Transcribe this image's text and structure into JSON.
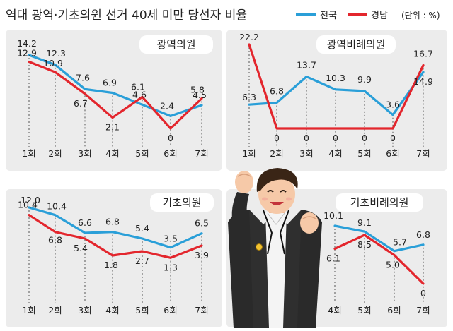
{
  "header": {
    "title": "역대 광역·기초의원 선거 40세 미만 당선자 비율",
    "unit": "(단위 : %)"
  },
  "legend": [
    {
      "label": "전국",
      "color": "#2a9fd8"
    },
    {
      "label": "경남",
      "color": "#e3262d"
    }
  ],
  "chart_data": [
    {
      "type": "line",
      "title": "광역의원",
      "categories": [
        "1회",
        "2회",
        "3회",
        "4회",
        "5회",
        "6회",
        "7회"
      ],
      "series": [
        {
          "name": "전국",
          "values": [
            14.2,
            12.3,
            7.6,
            6.9,
            4.6,
            2.4,
            4.5
          ]
        },
        {
          "name": "경남",
          "values": [
            12.9,
            10.9,
            6.7,
            2.1,
            6.1,
            0,
            5.8
          ]
        }
      ]
    },
    {
      "type": "line",
      "title": "광역비례의원",
      "categories": [
        "1회",
        "2회",
        "3회",
        "4회",
        "5회",
        "6회",
        "7회"
      ],
      "series": [
        {
          "name": "전국",
          "values": [
            6.3,
            6.8,
            13.7,
            10.3,
            9.9,
            3.6,
            14.9
          ]
        },
        {
          "name": "경남",
          "values": [
            22.2,
            0,
            0,
            0,
            0,
            0,
            16.7
          ]
        }
      ]
    },
    {
      "type": "line",
      "title": "기초의원",
      "categories": [
        "1회",
        "2회",
        "3회",
        "4회",
        "5회",
        "6회",
        "7회"
      ],
      "series": [
        {
          "name": "전국",
          "values": [
            12.0,
            10.4,
            6.6,
            6.8,
            5.4,
            3.5,
            6.5
          ]
        },
        {
          "name": "경남",
          "values": [
            10.4,
            6.8,
            5.4,
            1.8,
            2.7,
            1.3,
            3.9
          ]
        }
      ]
    },
    {
      "type": "line",
      "title": "기초비례의원",
      "categories": [
        "4회",
        "5회",
        "6회",
        "7회"
      ],
      "series": [
        {
          "name": "전국",
          "values": [
            10.1,
            9.1,
            5.7,
            6.8
          ]
        },
        {
          "name": "경남",
          "values": [
            6.1,
            8.5,
            5.0,
            0
          ]
        }
      ]
    }
  ]
}
